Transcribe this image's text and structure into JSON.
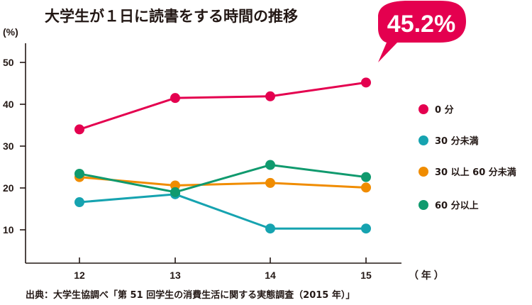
{
  "chart_data": {
    "type": "line",
    "title": "大学生が１日に読書をする時間の推移",
    "y_unit": "(%)",
    "x_unit": "（ 年 ）",
    "categories": [
      "12",
      "13",
      "14",
      "15"
    ],
    "ylim": [
      0,
      55
    ],
    "yticks": [
      10,
      20,
      30,
      40,
      50
    ],
    "grid": false,
    "legend_position": "right",
    "series": [
      {
        "name": "0 分",
        "color": "#e4004f",
        "values": [
          34.0,
          41.5,
          41.9,
          45.2
        ]
      },
      {
        "name": "30 分未満",
        "color": "#16a3b0",
        "values": [
          16.6,
          18.5,
          10.3,
          10.3
        ]
      },
      {
        "name": "30 以上 60 分未満",
        "color": "#f08c00",
        "values": [
          22.6,
          20.6,
          21.2,
          20.1
        ]
      },
      {
        "name": "60 分以上",
        "color": "#109a6e",
        "values": [
          23.4,
          19.0,
          25.5,
          22.6
        ]
      }
    ],
    "callout": {
      "text": "45.2%",
      "color": "#e4004f"
    },
    "source": "出典：大学生協調べ「第 51 回学生の消費生活に関する実態調査（2015 年）」"
  }
}
